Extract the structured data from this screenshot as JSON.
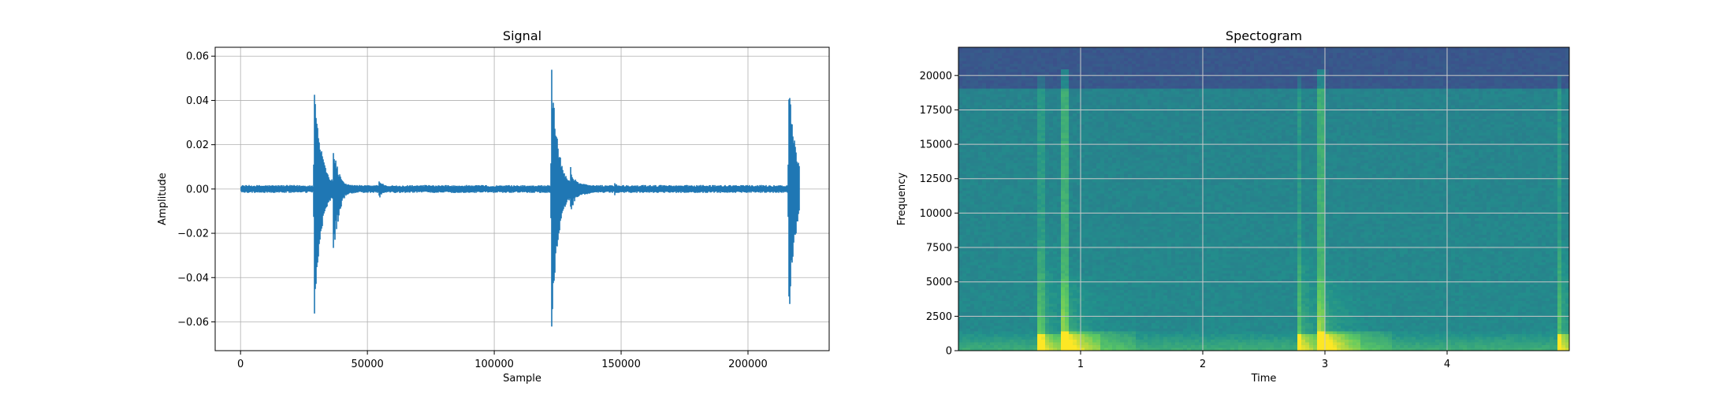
{
  "chart_data": [
    {
      "type": "line",
      "title": "Signal",
      "xlabel": "Sample",
      "ylabel": "Amplitude",
      "xlim": [
        -10000,
        232000
      ],
      "ylim": [
        -0.073,
        0.064
      ],
      "xticks": [
        0,
        50000,
        100000,
        150000,
        200000
      ],
      "xtick_labels": [
        "0",
        "50000",
        "100000",
        "150000",
        "200000"
      ],
      "yticks": [
        -0.06,
        -0.04,
        -0.02,
        0.0,
        0.02,
        0.04,
        0.06
      ],
      "ytick_labels": [
        "−0.06",
        "−0.04",
        "−0.02",
        "0.00",
        "0.02",
        "0.04",
        "0.06"
      ],
      "grid": true,
      "color": "#1f77b4",
      "n_samples": 220500,
      "noise_floor": 0.0015,
      "events": [
        {
          "onset": 29000,
          "max": 0.055,
          "min": -0.063
        },
        {
          "onset": 122500,
          "max": 0.058,
          "min": -0.066
        },
        {
          "onset": 216000,
          "max": 0.055,
          "min": -0.063
        }
      ],
      "secondary_bursts": [
        {
          "onset": 36500,
          "max": 0.022,
          "min": -0.036
        },
        {
          "onset": 54500,
          "max": 0.005,
          "min": -0.005
        },
        {
          "onset": 130000,
          "max": 0.012,
          "min": -0.012
        },
        {
          "onset": 147500,
          "max": 0.003,
          "min": -0.003
        }
      ]
    },
    {
      "type": "heatmap",
      "title": "Spectogram",
      "xlabel": "Time",
      "ylabel": "Frequency",
      "xlim": [
        0.0,
        5.0
      ],
      "ylim": [
        0,
        22050
      ],
      "xticks": [
        1,
        2,
        3,
        4
      ],
      "xtick_labels": [
        "1",
        "2",
        "3",
        "4"
      ],
      "yticks": [
        0,
        2500,
        5000,
        7500,
        10000,
        12500,
        15000,
        17500,
        20000
      ],
      "ytick_labels": [
        "0",
        "2500",
        "5000",
        "7500",
        "10000",
        "12500",
        "15000",
        "17500",
        "20000"
      ],
      "grid": true,
      "colormap": "viridis",
      "rolloff_frequency": 19000,
      "events_time": [
        0.66,
        2.78,
        4.9
      ],
      "strong_time": [
        0.85,
        2.95
      ],
      "colorscale": [
        "#440154",
        "#3b528b",
        "#21918c",
        "#5ec962",
        "#fde725"
      ]
    }
  ]
}
